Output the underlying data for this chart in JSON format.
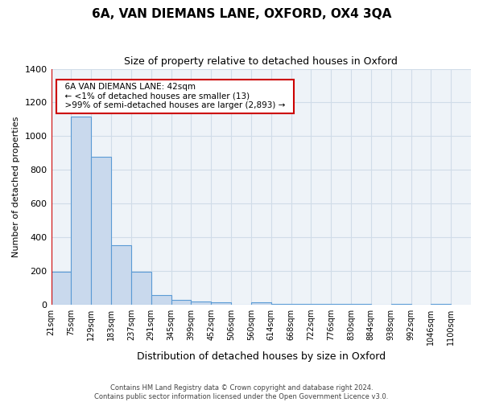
{
  "title": "6A, VAN DIEMANS LANE, OXFORD, OX4 3QA",
  "subtitle": "Size of property relative to detached houses in Oxford",
  "xlabel": "Distribution of detached houses by size in Oxford",
  "ylabel": "Number of detached properties",
  "bin_labels": [
    "21sqm",
    "75sqm",
    "129sqm",
    "183sqm",
    "237sqm",
    "291sqm",
    "345sqm",
    "399sqm",
    "452sqm",
    "506sqm",
    "560sqm",
    "614sqm",
    "668sqm",
    "722sqm",
    "776sqm",
    "830sqm",
    "884sqm",
    "938sqm",
    "992sqm",
    "1046sqm",
    "1100sqm"
  ],
  "bar_heights": [
    195,
    1115,
    875,
    350,
    195,
    55,
    25,
    15,
    10,
    0,
    10,
    5,
    5,
    5,
    5,
    5,
    0,
    5,
    0,
    5
  ],
  "bar_color": "#c9d9ed",
  "bar_edge_color": "#5b9bd5",
  "grid_color": "#d0dce8",
  "background_color": "#eef3f8",
  "ylim": [
    0,
    1400
  ],
  "yticks": [
    0,
    200,
    400,
    600,
    800,
    1000,
    1200,
    1400
  ],
  "property_line_color": "#cc0000",
  "annotation_title": "6A VAN DIEMANS LANE: 42sqm",
  "annotation_line1": "← <1% of detached houses are smaller (13)",
  "annotation_line2": ">99% of semi-detached houses are larger (2,893) →",
  "annotation_box_color": "#ffffff",
  "annotation_border_color": "#cc0000",
  "footer_line1": "Contains HM Land Registry data © Crown copyright and database right 2024.",
  "footer_line2": "Contains public sector information licensed under the Open Government Licence v3.0."
}
